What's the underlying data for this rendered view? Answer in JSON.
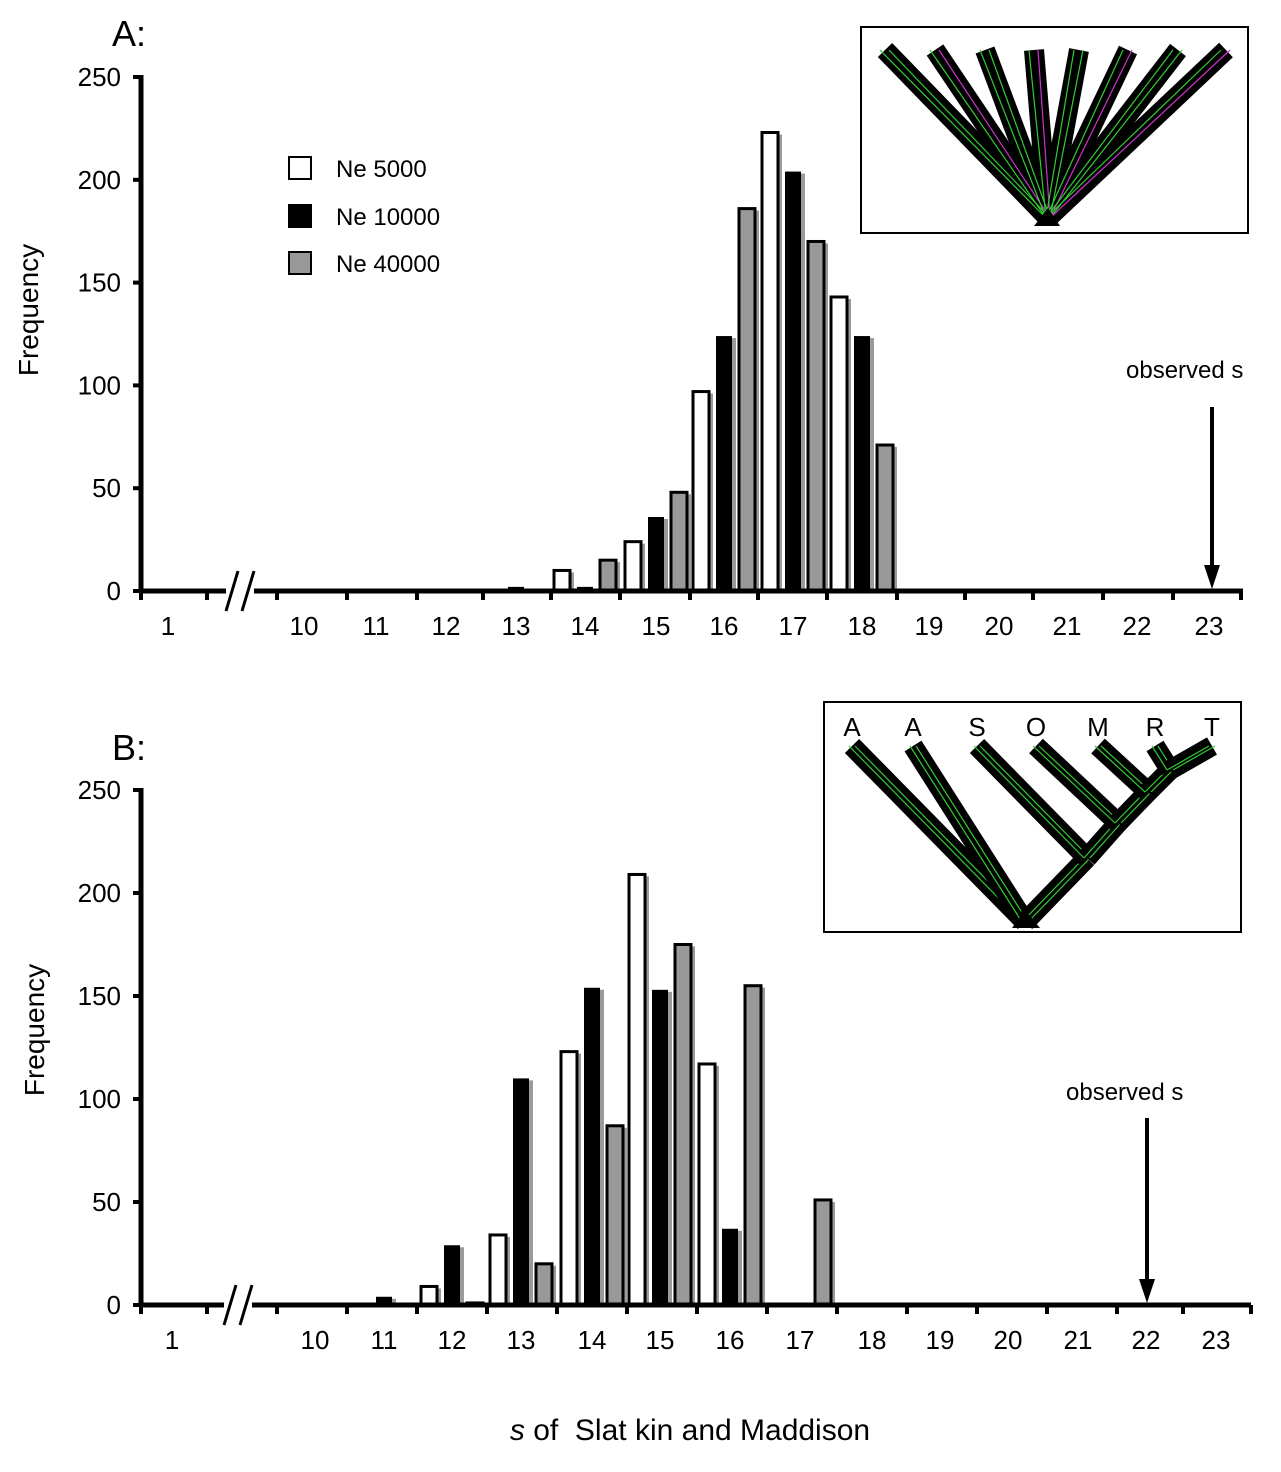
{
  "chart_data": [
    {
      "type": "bar",
      "panel": "A:",
      "categories": [
        "1",
        "10",
        "11",
        "12",
        "13",
        "14",
        "15",
        "16",
        "17",
        "18",
        "19",
        "20",
        "21",
        "22",
        "23"
      ],
      "x_axis_break": "between 1 and 10",
      "ylabel": "Frequency",
      "ylim": [
        0,
        250
      ],
      "yticks": [
        "0",
        "50",
        "100",
        "150",
        "200",
        "250"
      ],
      "series": [
        {
          "name": "Ne 5000",
          "color": "#ffffff",
          "values": [
            0,
            0,
            0,
            0,
            0,
            10,
            24,
            97,
            223,
            143,
            0,
            0,
            0,
            0,
            0
          ]
        },
        {
          "name": "Ne 10000",
          "color": "#000000",
          "values": [
            0,
            0,
            0,
            0,
            2,
            2,
            36,
            124,
            204,
            124,
            0,
            0,
            0,
            0,
            0
          ]
        },
        {
          "name": "Ne 40000",
          "color": "#999999",
          "values": [
            0,
            0,
            0,
            0,
            0,
            15,
            48,
            186,
            170,
            71,
            0,
            0,
            0,
            0,
            0
          ]
        }
      ],
      "annotation": {
        "text": "observed s",
        "at": "23"
      },
      "inset_tree": {
        "leaf_labels": []
      }
    },
    {
      "type": "bar",
      "panel": "B:",
      "categories": [
        "1",
        "10",
        "11",
        "12",
        "13",
        "14",
        "15",
        "16",
        "17",
        "18",
        "19",
        "20",
        "21",
        "22",
        "23"
      ],
      "x_axis_break": "between 1 and 10",
      "ylabel": "Frequency",
      "ylim": [
        0,
        250
      ],
      "yticks": [
        "0",
        "50",
        "100",
        "150",
        "200",
        "250"
      ],
      "series": [
        {
          "name": "Ne 5000",
          "color": "#ffffff",
          "values": [
            0,
            0,
            0,
            9,
            34,
            123,
            209,
            117,
            0,
            0,
            0,
            0,
            0,
            0,
            0
          ]
        },
        {
          "name": "Ne 10000",
          "color": "#000000",
          "values": [
            0,
            0,
            4,
            29,
            110,
            154,
            153,
            37,
            0,
            0,
            0,
            0,
            0,
            0,
            0
          ]
        },
        {
          "name": "Ne 40000",
          "color": "#999999",
          "values": [
            0,
            0,
            0,
            1,
            20,
            87,
            175,
            155,
            51,
            0,
            0,
            0,
            0,
            0,
            0
          ]
        }
      ],
      "annotation": {
        "text": "observed s",
        "at": "22"
      },
      "inset_tree": {
        "leaf_labels": [
          "A",
          "A",
          "S",
          "O",
          "M",
          "R",
          "T"
        ]
      }
    }
  ],
  "legend": [
    {
      "label": "Ne 5000",
      "color": "#ffffff"
    },
    {
      "label": "Ne 10000",
      "color": "#000000"
    },
    {
      "label": "Ne 40000",
      "color": "#999999"
    }
  ],
  "xlabel": {
    "italic": "s",
    "rest": " of  Slat kin and Maddison"
  },
  "colors": {
    "tree_branch": "#000000",
    "tree_line_green": "#33cc33",
    "tree_line_magenta": "#cc33cc"
  }
}
